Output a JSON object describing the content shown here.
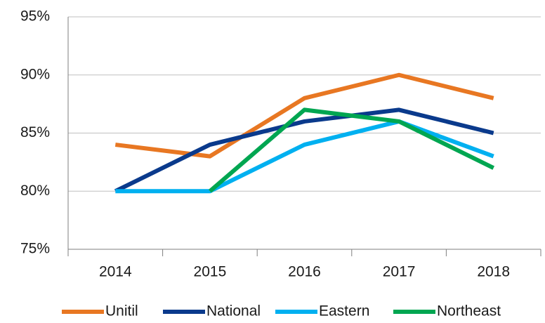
{
  "chart_data": {
    "type": "line",
    "categories": [
      "2014",
      "2015",
      "2016",
      "2017",
      "2018"
    ],
    "series": [
      {
        "name": "Unitil",
        "color": "#e87722",
        "values": [
          84,
          83,
          88,
          90,
          88
        ]
      },
      {
        "name": "National",
        "color": "#0a3a8c",
        "values": [
          80,
          84,
          86,
          87,
          85
        ]
      },
      {
        "name": "Eastern",
        "color": "#00b0f0",
        "values": [
          80,
          80,
          84,
          86,
          83
        ]
      },
      {
        "name": "Northeast",
        "color": "#00a651",
        "values": [
          null,
          80,
          87,
          86,
          82
        ]
      }
    ],
    "ylim": [
      75,
      95
    ],
    "yticks": [
      {
        "value": 75,
        "label": "75%"
      },
      {
        "value": 80,
        "label": "80%"
      },
      {
        "value": 85,
        "label": "85%"
      },
      {
        "value": 90,
        "label": "90%"
      },
      {
        "value": 95,
        "label": "95%"
      }
    ],
    "grid": true,
    "legend": "bottom"
  }
}
